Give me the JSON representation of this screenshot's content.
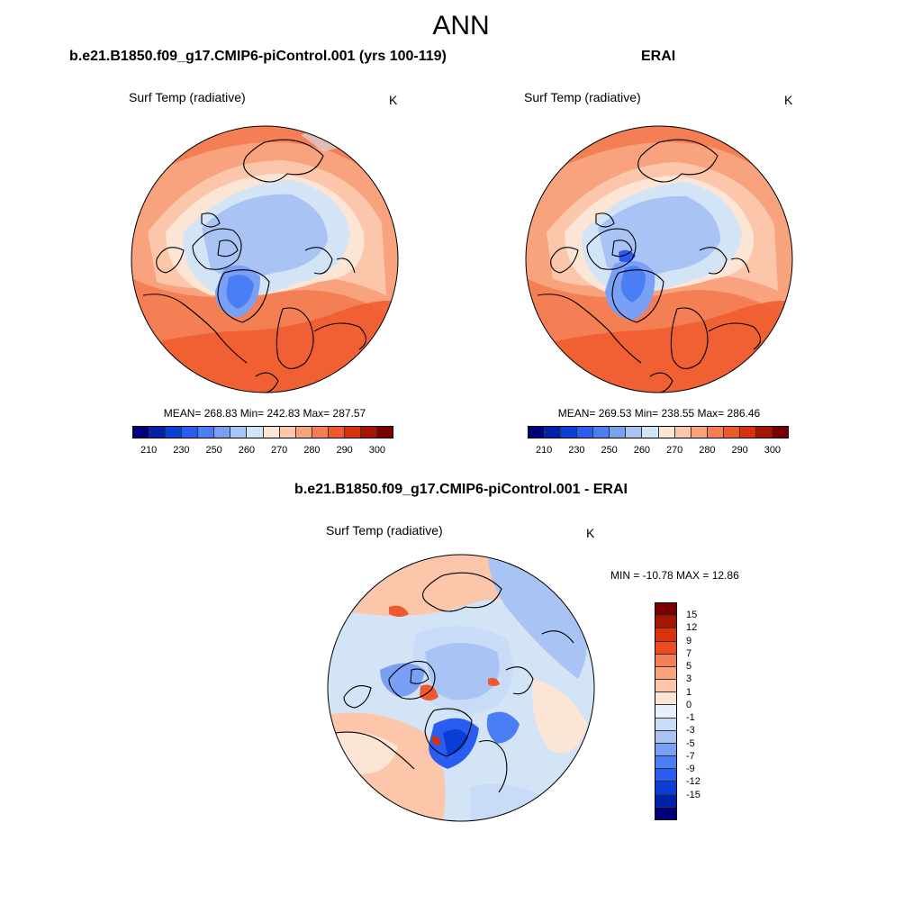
{
  "main_title": "ANN",
  "panel1": {
    "title": "b.e21.B1850.f09_g17.CMIP6-piControl.001 (yrs 100-119)",
    "var_label": "Surf Temp (radiative)",
    "unit": "K",
    "stats": "MEAN= 268.83  Min= 242.83  Max= 287.57"
  },
  "panel2": {
    "title": "ERAI",
    "var_label": "Surf Temp (radiative)",
    "unit": "K",
    "stats": "MEAN= 269.53  Min= 238.55  Max= 286.46"
  },
  "panel3": {
    "title": "b.e21.B1850.f09_g17.CMIP6-piControl.001 - ERAI",
    "var_label": "Surf Temp (radiative)",
    "unit": "K",
    "stats": "MIN = -10.78 MAX =  12.86"
  },
  "colorbar_abs": {
    "colors": [
      "#00007f",
      "#0022a8",
      "#0a3ed6",
      "#2a5cf2",
      "#4a7ef5",
      "#7aa0f5",
      "#a9c3f5",
      "#d4e4f7",
      "#fde5d5",
      "#fbc6aa",
      "#f8a37e",
      "#f47f55",
      "#ee5a2e",
      "#d8330e",
      "#a51500",
      "#7a0000"
    ],
    "labels": [
      "210",
      "230",
      "250",
      "260",
      "270",
      "280",
      "290",
      "300"
    ]
  },
  "colorbar_diff": {
    "colors": [
      "#7a0000",
      "#a51500",
      "#d8330e",
      "#ee4a20",
      "#f47f55",
      "#f8a37e",
      "#fbc6aa",
      "#fde5d5",
      "#e8f1fb",
      "#c9dcf7",
      "#a9c3f5",
      "#7aa0f5",
      "#4a7ef5",
      "#2a5cf2",
      "#0a3ed6",
      "#0022a8",
      "#00007f"
    ],
    "labels": [
      "15",
      "12",
      "9",
      "7",
      "5",
      "3",
      "1",
      "0",
      "-1",
      "-3",
      "-5",
      "-7",
      "-9",
      "-12",
      "-15"
    ]
  }
}
